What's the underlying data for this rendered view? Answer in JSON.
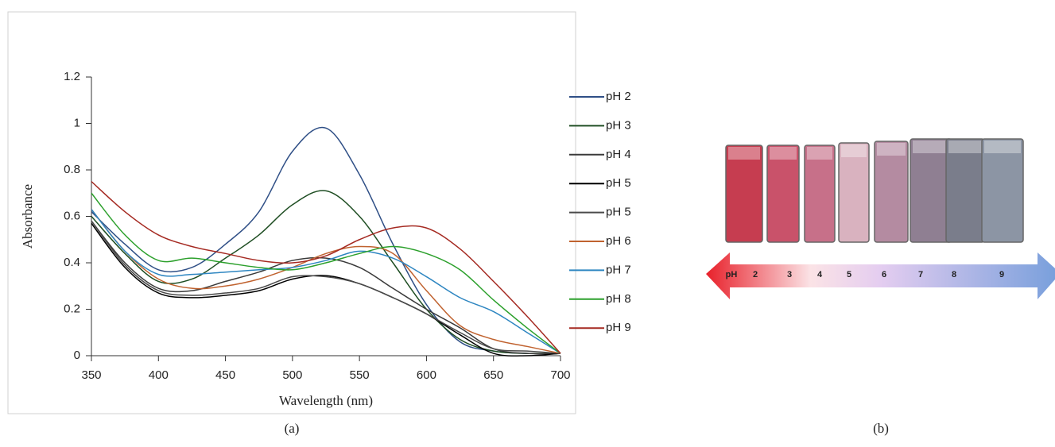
{
  "chart_data": {
    "type": "line",
    "x_label": "Wavelength (nm)",
    "y_label": "Absorbance",
    "x": [
      350,
      375,
      400,
      425,
      450,
      475,
      500,
      525,
      550,
      575,
      600,
      625,
      650,
      675,
      700
    ],
    "series": [
      {
        "name": "pH 2",
        "color": "#2f4f86",
        "values": [
          0.62,
          0.48,
          0.37,
          0.38,
          0.48,
          0.62,
          0.88,
          0.98,
          0.78,
          0.48,
          0.22,
          0.06,
          0.02,
          0.01,
          0.01
        ]
      },
      {
        "name": "pH 3",
        "color": "#1f4e23",
        "values": [
          0.6,
          0.44,
          0.32,
          0.33,
          0.42,
          0.52,
          0.65,
          0.71,
          0.6,
          0.4,
          0.2,
          0.07,
          0.02,
          0.01,
          0.01
        ]
      },
      {
        "name": "pH 4",
        "color": "#3a3a3a",
        "values": [
          0.58,
          0.4,
          0.29,
          0.28,
          0.32,
          0.36,
          0.41,
          0.42,
          0.38,
          0.29,
          0.2,
          0.12,
          0.03,
          0.01,
          0.01
        ]
      },
      {
        "name": "pH 5",
        "color": "#000000",
        "values": [
          0.57,
          0.38,
          0.27,
          0.25,
          0.26,
          0.28,
          0.33,
          0.345,
          0.31,
          0.25,
          0.18,
          0.09,
          0.01,
          0.0,
          0.01
        ]
      },
      {
        "name": "pH 5",
        "color": "#4a4a4a",
        "values": [
          0.58,
          0.39,
          0.28,
          0.26,
          0.27,
          0.29,
          0.34,
          0.34,
          0.31,
          0.25,
          0.18,
          0.1,
          0.03,
          0.02,
          0.01
        ]
      },
      {
        "name": "pH 6",
        "color": "#c0622f",
        "values": [
          0.63,
          0.45,
          0.33,
          0.29,
          0.3,
          0.33,
          0.38,
          0.44,
          0.47,
          0.44,
          0.28,
          0.13,
          0.07,
          0.04,
          0.01
        ]
      },
      {
        "name": "pH 7",
        "color": "#2e86c1",
        "values": [
          0.63,
          0.45,
          0.35,
          0.35,
          0.36,
          0.37,
          0.38,
          0.41,
          0.45,
          0.42,
          0.34,
          0.25,
          0.19,
          0.1,
          0.01
        ]
      },
      {
        "name": "pH 8",
        "color": "#2ca02c",
        "values": [
          0.7,
          0.52,
          0.41,
          0.42,
          0.4,
          0.38,
          0.37,
          0.4,
          0.44,
          0.47,
          0.44,
          0.37,
          0.24,
          0.12,
          0.01
        ]
      },
      {
        "name": "pH 9",
        "color": "#a52a22",
        "values": [
          0.75,
          0.62,
          0.52,
          0.47,
          0.44,
          0.41,
          0.4,
          0.43,
          0.5,
          0.55,
          0.55,
          0.46,
          0.32,
          0.17,
          0.01
        ]
      }
    ],
    "xlim": [
      350,
      700
    ],
    "xticks": [
      350,
      400,
      450,
      500,
      550,
      600,
      650,
      700
    ],
    "ylim": [
      0,
      1.2
    ],
    "yticks": [
      0,
      0.2,
      0.4,
      0.6,
      0.8,
      1,
      1.2
    ],
    "grid": false,
    "legend": "right"
  },
  "panel_labels": [
    "(a)",
    "(b)"
  ],
  "panel_b": {
    "arrow_labels": [
      "pH",
      "2",
      "3",
      "4",
      "5",
      "6",
      "7",
      "8",
      "9"
    ]
  }
}
